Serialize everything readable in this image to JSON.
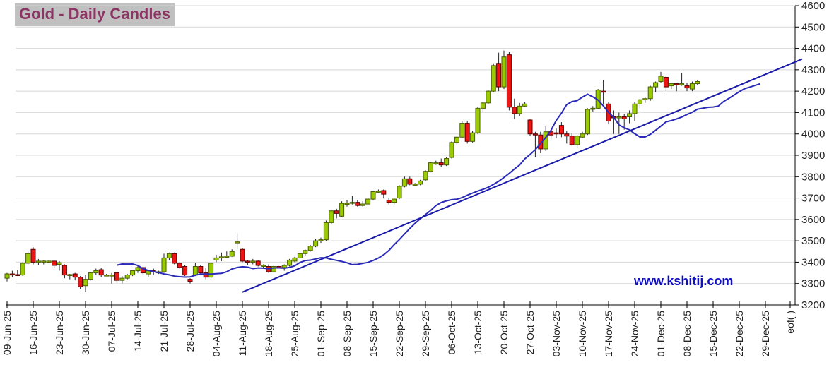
{
  "title": "Gold - Daily Candles",
  "watermark": "www.kshitij.com",
  "colors": {
    "up": "#99cc00",
    "up_border": "#4b5e00",
    "down": "#ee1515",
    "down_border": "#5a0000",
    "ma": "#2a2ab8",
    "trendline": "#1a1aa8",
    "title_text": "#8b3563",
    "title_bg": "#c0c0c0",
    "watermark": "#1010c0"
  },
  "chart_data": {
    "type": "candlestick",
    "title": "Gold - Daily Candles",
    "xlabel": "",
    "ylabel": "",
    "ylim": [
      3200,
      4600
    ],
    "yticks": [
      3200,
      3300,
      3400,
      3500,
      3600,
      3700,
      3800,
      3900,
      4000,
      4100,
      4200,
      4300,
      4400,
      4500,
      4600
    ],
    "xticks": [
      "09-Jun-25",
      "16-Jun-25",
      "23-Jun-25",
      "30-Jun-25",
      "07-Jul-25",
      "14-Jul-25",
      "21-Jul-25",
      "28-Jul-25",
      "04-Aug-25",
      "11-Aug-25",
      "18-Aug-25",
      "25-Aug-25",
      "01-Sep-25",
      "08-Sep-25",
      "15-Sep-25",
      "22-Sep-25",
      "29-Sep-25",
      "06-Oct-25",
      "13-Oct-25",
      "20-Oct-25",
      "27-Oct-25",
      "03-Nov-25",
      "10-Nov-25",
      "17-Nov-25",
      "24-Nov-25",
      "01-Dec-25",
      "08-Dec-25",
      "15-Dec-25",
      "22-Dec-25",
      "29-Dec-25",
      "eof( )"
    ],
    "grid": true,
    "ohlc": [
      [
        3325,
        3350,
        3310,
        3345
      ],
      [
        3345,
        3360,
        3330,
        3342
      ],
      [
        3342,
        3365,
        3335,
        3340
      ],
      [
        3340,
        3400,
        3335,
        3395
      ],
      [
        3395,
        3450,
        3390,
        3440
      ],
      [
        3460,
        3470,
        3390,
        3400
      ],
      [
        3400,
        3415,
        3385,
        3405
      ],
      [
        3405,
        3410,
        3390,
        3405
      ],
      [
        3405,
        3410,
        3395,
        3405
      ],
      [
        3405,
        3410,
        3375,
        3385
      ],
      [
        3390,
        3405,
        3360,
        3398
      ],
      [
        3385,
        3390,
        3325,
        3340
      ],
      [
        3340,
        3345,
        3320,
        3342
      ],
      [
        3345,
        3350,
        3315,
        3330
      ],
      [
        3330,
        3335,
        3275,
        3285
      ],
      [
        3290,
        3340,
        3260,
        3320
      ],
      [
        3320,
        3355,
        3315,
        3350
      ],
      [
        3350,
        3370,
        3340,
        3360
      ],
      [
        3365,
        3375,
        3330,
        3340
      ],
      [
        3340,
        3345,
        3335,
        3340
      ],
      [
        3340,
        3350,
        3300,
        3340
      ],
      [
        3350,
        3355,
        3305,
        3315
      ],
      [
        3315,
        3335,
        3300,
        3325
      ],
      [
        3325,
        3345,
        3320,
        3340
      ],
      [
        3340,
        3365,
        3335,
        3360
      ],
      [
        3360,
        3385,
        3350,
        3375
      ],
      [
        3375,
        3380,
        3340,
        3350
      ],
      [
        3345,
        3365,
        3330,
        3360
      ],
      [
        3360,
        3370,
        3340,
        3355
      ],
      [
        3350,
        3360,
        3345,
        3355
      ],
      [
        3355,
        3440,
        3350,
        3420
      ],
      [
        3420,
        3445,
        3410,
        3440
      ],
      [
        3440,
        3445,
        3390,
        3395
      ],
      [
        3395,
        3400,
        3370,
        3375
      ],
      [
        3380,
        3385,
        3335,
        3340
      ],
      [
        3320,
        3325,
        3300,
        3310
      ],
      [
        3340,
        3395,
        3335,
        3380
      ],
      [
        3380,
        3385,
        3340,
        3350
      ],
      [
        3350,
        3375,
        3320,
        3330
      ],
      [
        3330,
        3400,
        3325,
        3395
      ],
      [
        3410,
        3435,
        3400,
        3420
      ],
      [
        3420,
        3445,
        3405,
        3425
      ],
      [
        3425,
        3450,
        3420,
        3428
      ],
      [
        3428,
        3460,
        3425,
        3450
      ],
      [
        3495,
        3535,
        3460,
        3495
      ],
      [
        3460,
        3465,
        3400,
        3405
      ],
      [
        3405,
        3410,
        3385,
        3400
      ],
      [
        3400,
        3415,
        3390,
        3405
      ],
      [
        3405,
        3410,
        3380,
        3385
      ],
      [
        3385,
        3390,
        3375,
        3385
      ],
      [
        3380,
        3390,
        3350,
        3355
      ],
      [
        3355,
        3385,
        3350,
        3380
      ],
      [
        3380,
        3382,
        3370,
        3375
      ],
      [
        3375,
        3390,
        3360,
        3385
      ],
      [
        3385,
        3415,
        3380,
        3410
      ],
      [
        3405,
        3425,
        3400,
        3420
      ],
      [
        3420,
        3445,
        3415,
        3440
      ],
      [
        3440,
        3460,
        3430,
        3455
      ],
      [
        3455,
        3480,
        3450,
        3475
      ],
      [
        3475,
        3510,
        3470,
        3500
      ],
      [
        3500,
        3515,
        3490,
        3505
      ],
      [
        3505,
        3595,
        3500,
        3585
      ],
      [
        3585,
        3645,
        3580,
        3640
      ],
      [
        3640,
        3650,
        3605,
        3628
      ],
      [
        3615,
        3685,
        3610,
        3675
      ],
      [
        3675,
        3690,
        3660,
        3675
      ],
      [
        3675,
        3710,
        3670,
        3680
      ],
      [
        3680,
        3690,
        3660,
        3665
      ],
      [
        3665,
        3685,
        3660,
        3672
      ],
      [
        3672,
        3700,
        3665,
        3695
      ],
      [
        3695,
        3735,
        3690,
        3730
      ],
      [
        3730,
        3740,
        3725,
        3732
      ],
      [
        3735,
        3740,
        3700,
        3718
      ],
      [
        3690,
        3700,
        3670,
        3680
      ],
      [
        3680,
        3700,
        3670,
        3695
      ],
      [
        3700,
        3760,
        3695,
        3755
      ],
      [
        3755,
        3800,
        3750,
        3790
      ],
      [
        3790,
        3800,
        3760,
        3765
      ],
      [
        3765,
        3770,
        3755,
        3765
      ],
      [
        3765,
        3785,
        3760,
        3780
      ],
      [
        3785,
        3830,
        3780,
        3825
      ],
      [
        3825,
        3870,
        3820,
        3865
      ],
      [
        3865,
        3875,
        3855,
        3865
      ],
      [
        3865,
        3885,
        3845,
        3855
      ],
      [
        3855,
        3890,
        3850,
        3885
      ],
      [
        3890,
        3965,
        3885,
        3960
      ],
      [
        3960,
        3990,
        3950,
        3985
      ],
      [
        3985,
        4060,
        3980,
        4050
      ],
      [
        4050,
        4060,
        3955,
        3965
      ],
      [
        3965,
        4015,
        3960,
        4005
      ],
      [
        4005,
        4125,
        4000,
        4120
      ],
      [
        4120,
        4150,
        4100,
        4145
      ],
      [
        4145,
        4205,
        4140,
        4200
      ],
      [
        4200,
        4330,
        4195,
        4320
      ],
      [
        4330,
        4380,
        4200,
        4220
      ],
      [
        4220,
        4390,
        4210,
        4360
      ],
      [
        4370,
        4385,
        4110,
        4125
      ],
      [
        4125,
        4165,
        4070,
        4095
      ],
      [
        4095,
        4145,
        4085,
        4130
      ],
      [
        4130,
        4150,
        4125,
        4140
      ],
      [
        4065,
        4070,
        3990,
        4000
      ],
      [
        4000,
        4010,
        3890,
        3995
      ],
      [
        3995,
        4010,
        3910,
        3930
      ],
      [
        3930,
        4035,
        3920,
        4010
      ],
      [
        4010,
        4035,
        3975,
        3995
      ],
      [
        4005,
        4025,
        3980,
        4000
      ],
      [
        4040,
        4055,
        3985,
        4000
      ],
      [
        4000,
        4015,
        3955,
        3990
      ],
      [
        3990,
        4005,
        3945,
        3950
      ],
      [
        3950,
        3995,
        3935,
        3990
      ],
      [
        3985,
        4010,
        3980,
        4000
      ],
      [
        4000,
        4120,
        3995,
        4115
      ],
      [
        4115,
        4130,
        4105,
        4120
      ],
      [
        4120,
        4210,
        4115,
        4205
      ],
      [
        4200,
        4250,
        4140,
        4195
      ],
      [
        4140,
        4150,
        4045,
        4060
      ],
      [
        4080,
        4110,
        4000,
        4075
      ],
      [
        4075,
        4100,
        4000,
        4080
      ],
      [
        4080,
        4095,
        4020,
        4070
      ],
      [
        4080,
        4110,
        4050,
        4095
      ],
      [
        4095,
        4150,
        4060,
        4140
      ],
      [
        4140,
        4165,
        4120,
        4160
      ],
      [
        4160,
        4170,
        4145,
        4165
      ],
      [
        4165,
        4225,
        4155,
        4220
      ],
      [
        4220,
        4245,
        4195,
        4240
      ],
      [
        4245,
        4290,
        4240,
        4270
      ],
      [
        4265,
        4275,
        4200,
        4220
      ],
      [
        4225,
        4240,
        4210,
        4235
      ],
      [
        4235,
        4240,
        4200,
        4230
      ],
      [
        4235,
        4285,
        4225,
        4235
      ],
      [
        4225,
        4240,
        4200,
        4215
      ],
      [
        4210,
        4245,
        4200,
        4235
      ],
      [
        4235,
        4250,
        4230,
        4245
      ]
    ],
    "moving_average": {
      "period": 10,
      "forward_shift_days": 12
    },
    "trendline": {
      "start": {
        "day_index": 45,
        "value": 3260
      },
      "end": {
        "day_index": 152,
        "value": 4350
      }
    }
  }
}
